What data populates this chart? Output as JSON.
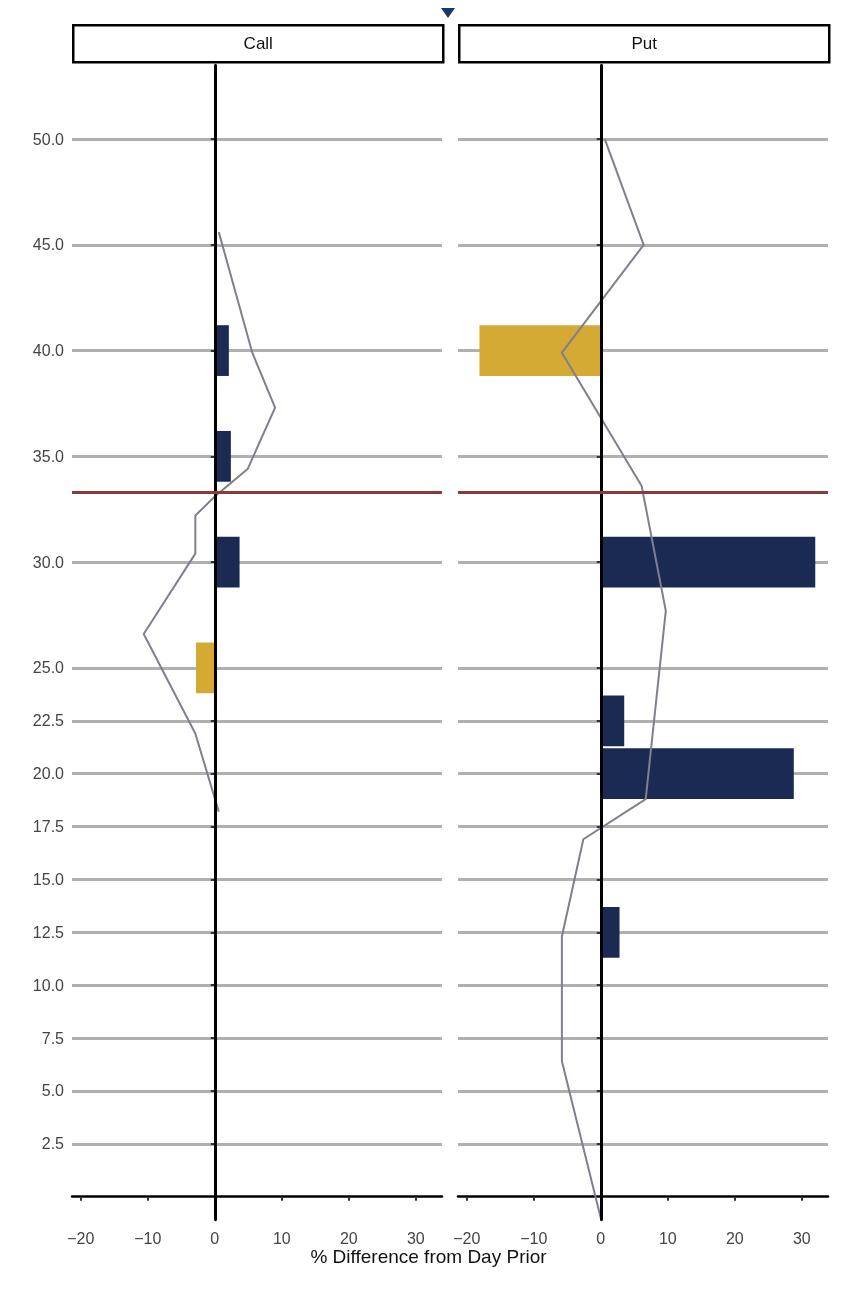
{
  "chart_data": [
    {
      "type": "bar",
      "title": "Call",
      "xlabel": "% Difference from Day Prior",
      "orientation": "horizontal",
      "grid": "y",
      "xlim": [
        -21.3,
        33.9
      ],
      "xticks": [
        -20,
        -10,
        0,
        10,
        20,
        30
      ],
      "ylim": [
        -1.1,
        53.5
      ],
      "yticks": [
        {
          "value": 2.5,
          "label": "2.5"
        },
        {
          "value": 5,
          "label": "5.0"
        },
        {
          "value": 7.5,
          "label": "7.5"
        },
        {
          "value": 10,
          "label": "10.0"
        },
        {
          "value": 12.5,
          "label": "12.5"
        },
        {
          "value": 15,
          "label": "15.0"
        },
        {
          "value": 17.5,
          "label": "17.5"
        },
        {
          "value": 20,
          "label": "20.0"
        },
        {
          "value": 22.5,
          "label": "22.5"
        },
        {
          "value": 25,
          "label": "25.0"
        },
        {
          "value": 30,
          "label": "30.0"
        },
        {
          "value": 35,
          "label": "35.0"
        },
        {
          "value": 40,
          "label": "40.0"
        },
        {
          "value": 45,
          "label": "45.0"
        },
        {
          "value": 50,
          "label": "50.0"
        }
      ],
      "ref_lines": [
        {
          "axis": "x",
          "value": 0,
          "color": "#000000"
        },
        {
          "axis": "y",
          "value": 33.3,
          "color": "#8b3a3a"
        }
      ],
      "series": [
        {
          "x": [
            25,
            30,
            35,
            40
          ],
          "values": [
            -2.8,
            3.7,
            2.4,
            2.1
          ],
          "colors": [
            "#d4aa35",
            "#1b2a52",
            "#1b2a52",
            "#1b2a52"
          ]
        },
        {
          "type": "line",
          "color": "#7f7f8f",
          "x": [
            45.6,
            39.9,
            37.3,
            34.4,
            33.1,
            32.2,
            30.4,
            26.6,
            21.9,
            18.2
          ],
          "values": [
            0.6,
            5.6,
            9.0,
            4.9,
            0,
            -2.9,
            -2.9,
            -10.6,
            -2.9,
            0.6
          ]
        }
      ]
    },
    {
      "type": "bar",
      "title": "Put",
      "orientation": "horizontal",
      "grid": "y",
      "tick_labels": "x",
      "xlim": [
        -21.3,
        33.9
      ],
      "xticks": [
        -20,
        -10,
        0,
        10,
        20,
        30
      ],
      "ylim": [
        -1.1,
        53.5
      ],
      "yticks": [
        2.5,
        5,
        7.5,
        10,
        12.5,
        15,
        17.5,
        20,
        22.5,
        25,
        30,
        35,
        40,
        45,
        50
      ],
      "ref_lines": [
        {
          "axis": "x",
          "value": 0,
          "color": "#000000"
        },
        {
          "axis": "y",
          "value": 33.3,
          "color": "#8b3a3a"
        }
      ],
      "series": [
        {
          "x": [
            12.5,
            20,
            22.5,
            30,
            40
          ],
          "values": [
            2.8,
            28.8,
            3.5,
            32,
            -18.1
          ],
          "colors": [
            "#1b2a52",
            "#1b2a52",
            "#1b2a52",
            "#1b2a52",
            "#d4aa35"
          ]
        },
        {
          "type": "line",
          "color": "#7f7f8f",
          "x": [
            50,
            45,
            39.9,
            33.6,
            27.7,
            18.8,
            16.9,
            12.3,
            6.4,
            -1.0
          ],
          "values": [
            0.6,
            6.4,
            -5.8,
            6.1,
            9.7,
            6.7,
            -2.6,
            -5.8,
            -5.8,
            0
          ]
        }
      ]
    }
  ]
}
